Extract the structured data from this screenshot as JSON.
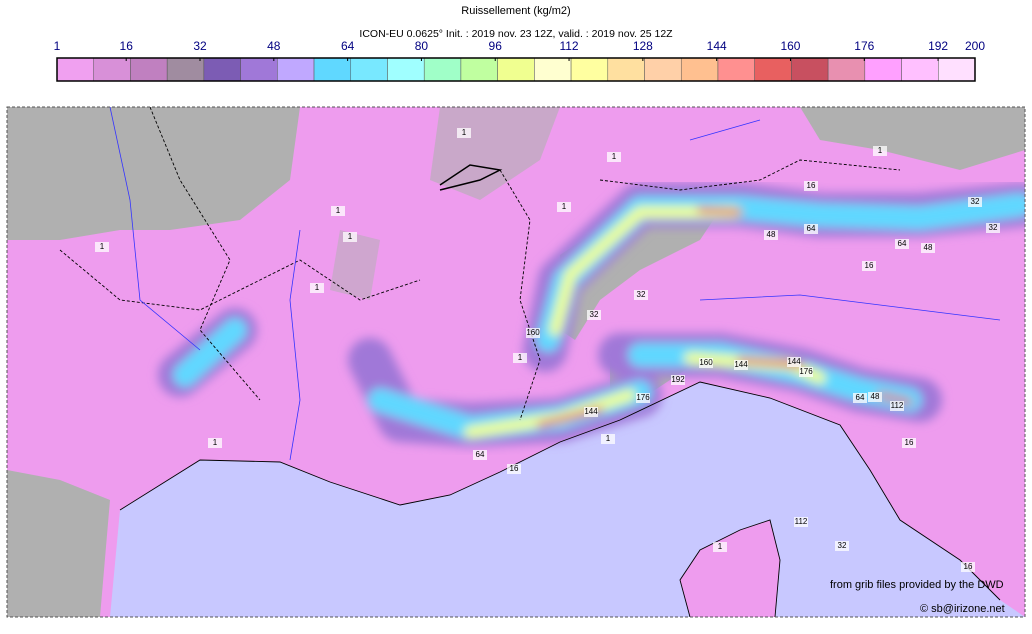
{
  "header": {
    "title": "Ruissellement (kg/m2)",
    "subtitle": "ICON-EU 0.0625° Init. : 2019 nov. 23 12Z, valid. : 2019 nov. 25 12Z"
  },
  "colorbar": {
    "lim": [
      1,
      200
    ],
    "ticks": [
      1,
      16,
      32,
      48,
      64,
      80,
      96,
      112,
      128,
      144,
      160,
      176,
      192,
      200
    ],
    "colors": [
      "#f0a0f0",
      "#d890d8",
      "#c080c0",
      "#a08ca0",
      "#7c5cb4",
      "#a078d8",
      "#c0a8ff",
      "#60d8ff",
      "#78e8ff",
      "#a0ffff",
      "#a0ffc8",
      "#c0ffa0",
      "#f0ff90",
      "#ffffd0",
      "#ffffa0",
      "#ffe0a0",
      "#ffd0a8",
      "#ffc090",
      "#ff9090",
      "#e86060",
      "#c85060",
      "#e890b0",
      "#ffa0ff",
      "#ffc0ff",
      "#ffe0ff"
    ]
  },
  "map": {
    "contour_labels": [
      1,
      1,
      1,
      1,
      1,
      1,
      1,
      1,
      16,
      32,
      64,
      48,
      16,
      48,
      64,
      32,
      32,
      32,
      160,
      1,
      144,
      64,
      48,
      16,
      144,
      176,
      192,
      160,
      144,
      176,
      112,
      64,
      1,
      1,
      16,
      112,
      32,
      16,
      1
    ]
  },
  "credits": {
    "source": "from grib files provided by the DWD",
    "copyright": "© sb@irizone.net"
  }
}
